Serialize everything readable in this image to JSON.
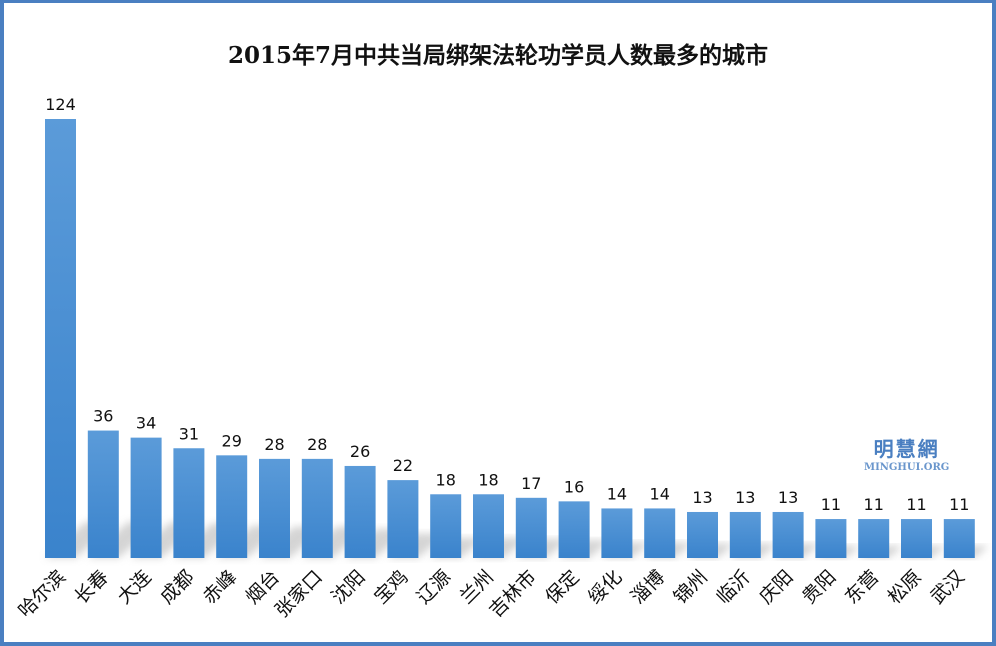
{
  "chart_data": {
    "type": "bar",
    "title": "2015年7月中共当局绑架法轮功学员人数最多的城市",
    "categories": [
      "哈尔滨",
      "长春",
      "大连",
      "成都",
      "赤峰",
      "烟台",
      "张家口",
      "沈阳",
      "宝鸡",
      "辽源",
      "兰州",
      "吉林市",
      "保定",
      "绥化",
      "淄博",
      "锦州",
      "临沂",
      "庆阳",
      "贵阳",
      "东营",
      "松原",
      "武汉"
    ],
    "values": [
      124,
      36,
      34,
      31,
      29,
      28,
      28,
      26,
      22,
      18,
      18,
      17,
      16,
      14,
      14,
      13,
      13,
      13,
      11,
      11,
      11,
      11
    ],
    "xlabel": "",
    "ylabel": "",
    "ylim": [
      0,
      124
    ],
    "grid": false,
    "legend": "none",
    "bar_color": "#4a8fd6",
    "data_labels": true
  },
  "watermark": {
    "cn": "明慧網",
    "en": "MINGHUI.ORG"
  },
  "colors": {
    "frame": "#4a7fc1"
  }
}
